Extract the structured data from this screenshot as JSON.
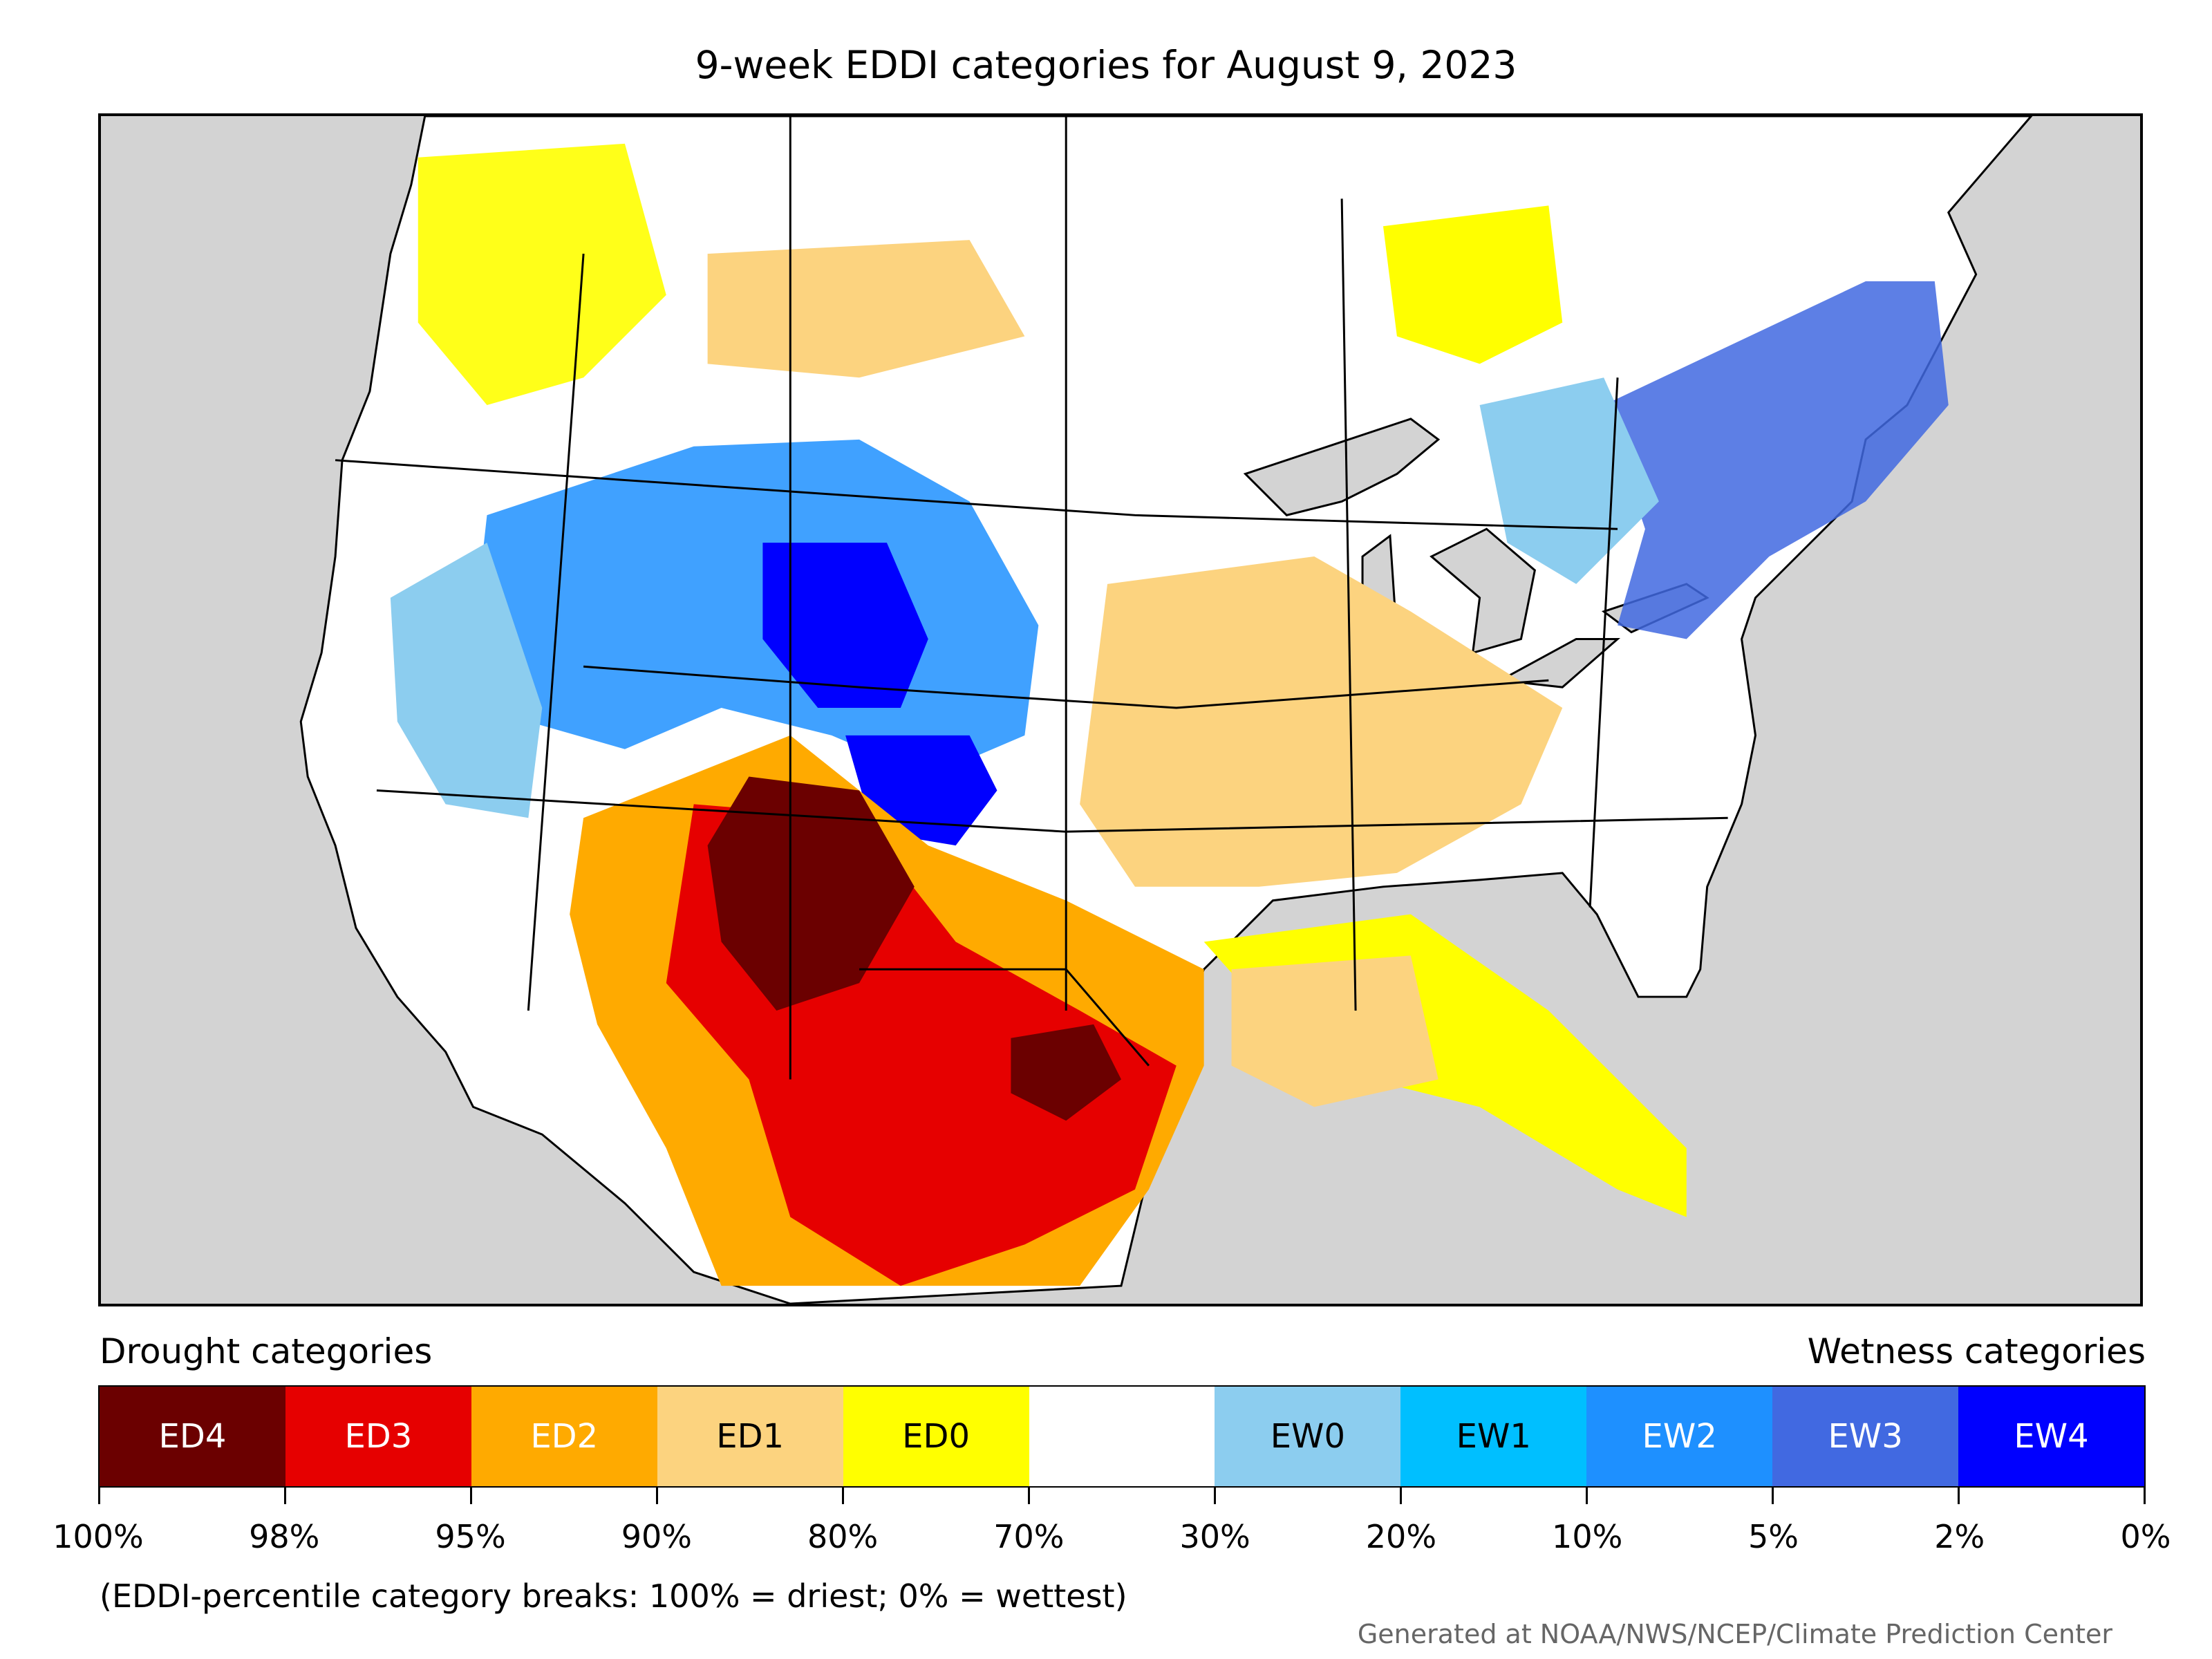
{
  "title": "9-week EDDI categories for August 9, 2023",
  "legend": {
    "drought_heading": "Drought categories",
    "wetness_heading": "Wetness categories",
    "categories": [
      {
        "label": "ED4",
        "color": "#6b0000",
        "text_color": "#ffffff"
      },
      {
        "label": "ED3",
        "color": "#e60000",
        "text_color": "#ffffff"
      },
      {
        "label": "ED2",
        "color": "#ffaa00",
        "text_color": "#ffffff"
      },
      {
        "label": "ED1",
        "color": "#fcd37f",
        "text_color": "#000000"
      },
      {
        "label": "ED0",
        "color": "#ffff00",
        "text_color": "#000000"
      },
      {
        "label": "",
        "color": "#ffffff",
        "text_color": "#000000"
      },
      {
        "label": "EW0",
        "color": "#8ccdef",
        "text_color": "#000000"
      },
      {
        "label": "EW1",
        "color": "#00bfff",
        "text_color": "#000000"
      },
      {
        "label": "EW2",
        "color": "#1e90ff",
        "text_color": "#ffffff"
      },
      {
        "label": "EW3",
        "color": "#4169e1",
        "text_color": "#ffffff"
      },
      {
        "label": "EW4",
        "color": "#0000ff",
        "text_color": "#ffffff"
      }
    ],
    "tick_labels": [
      "100%",
      "98%",
      "95%",
      "90%",
      "80%",
      "70%",
      "30%",
      "20%",
      "10%",
      "5%",
      "2%",
      "0%"
    ]
  },
  "note": "(EDDI-percentile category breaks: 100% = driest; 0% = wettest)",
  "credit": "Generated at NOAA/NWS/NCEP/Climate Prediction Center",
  "map": {
    "background_color": "#d3d3d3",
    "land_color": "#ffffff",
    "region": "Continental United States"
  }
}
